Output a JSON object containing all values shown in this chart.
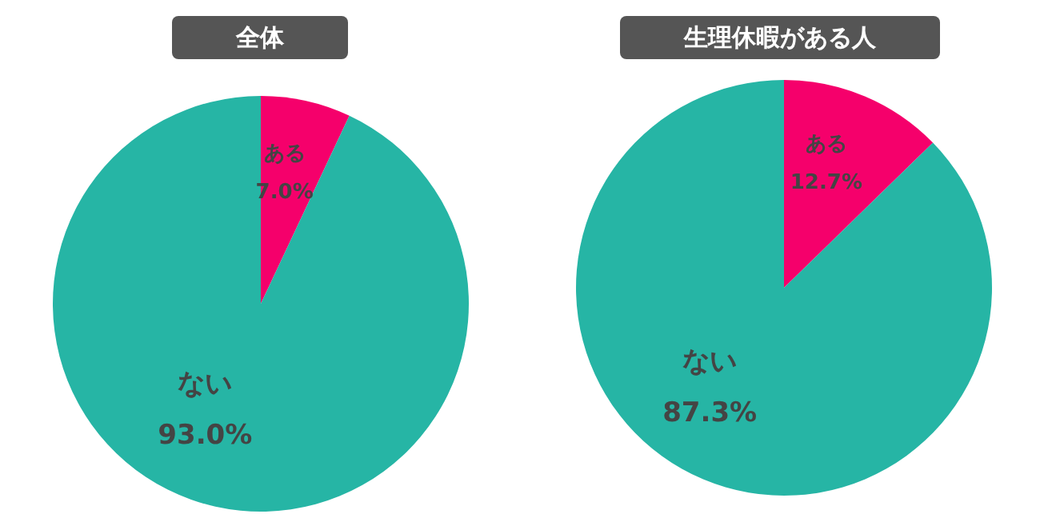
{
  "chart_data": [
    {
      "type": "pie",
      "title": "全体",
      "categories": [
        "ある",
        "ない"
      ],
      "values": [
        7.0,
        93.0
      ],
      "colors": [
        "#f5006b",
        "#26b5a5"
      ],
      "value_labels": [
        "7.0%",
        "93.0%"
      ]
    },
    {
      "type": "pie",
      "title": "生理休暇がある人",
      "categories": [
        "ある",
        "ない"
      ],
      "values": [
        12.7,
        87.3
      ],
      "colors": [
        "#f5006b",
        "#26b5a5"
      ],
      "value_labels": [
        "12.7%",
        "87.3%"
      ]
    }
  ]
}
